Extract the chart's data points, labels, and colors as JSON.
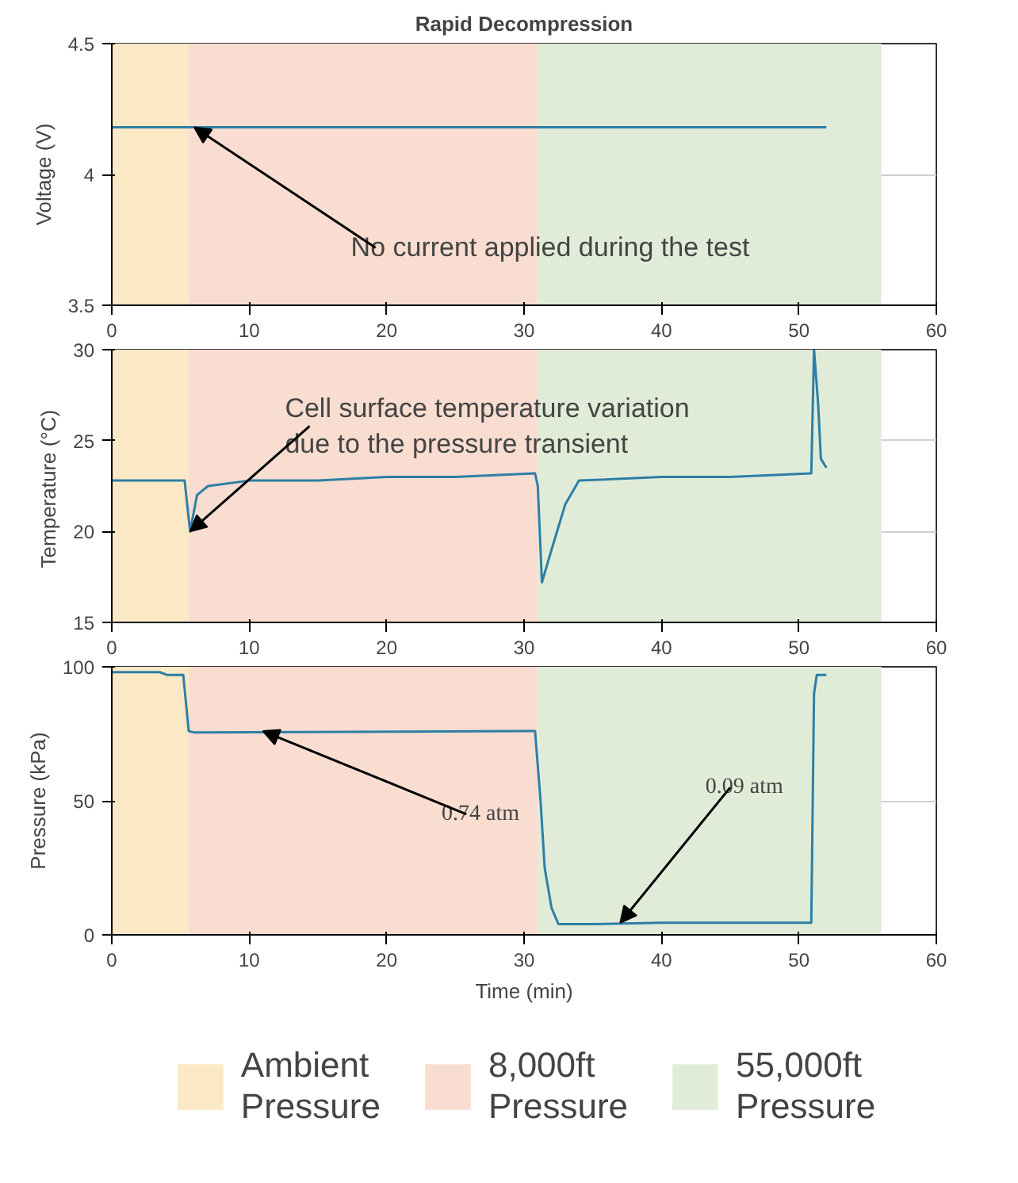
{
  "chart_data": [
    {
      "type": "line",
      "title": "Rapid Decompression",
      "ylabel": "Voltage (V)",
      "xlim": [
        0,
        60
      ],
      "xticks": [
        0,
        10,
        20,
        30,
        40,
        50,
        60
      ],
      "ylim": [
        3.5,
        4.5
      ],
      "yticks": [
        3.5,
        4,
        4.5
      ],
      "grid": true,
      "series": [
        {
          "color": "#2d7fa6",
          "x": [
            0,
            10,
            20,
            30,
            40,
            52
          ],
          "values": [
            4.18,
            4.18,
            4.18,
            4.18,
            4.18,
            4.18
          ]
        }
      ],
      "bands": [
        {
          "axis": "x",
          "from": 0,
          "to": 5.6,
          "color": "#fbe9c6"
        },
        {
          "axis": "x",
          "from": 5.6,
          "to": 31,
          "color": "#f8ddd0"
        },
        {
          "axis": "x",
          "from": 31,
          "to": 56,
          "color": "#e1ecd8"
        }
      ],
      "annotations": [
        {
          "text": "No current applied during the test",
          "x": 6,
          "y": 4.18
        }
      ]
    },
    {
      "type": "line",
      "ylabel": "Temperature  (°C)",
      "xlim": [
        0,
        60
      ],
      "xticks": [
        0,
        10,
        20,
        30,
        40,
        50,
        60
      ],
      "ylim": [
        15,
        30
      ],
      "yticks": [
        15,
        20,
        25,
        30
      ],
      "grid": true,
      "series": [
        {
          "color": "#2d7fa6",
          "x": [
            0,
            5.3,
            5.7,
            6.2,
            7,
            10,
            15,
            20,
            25,
            30.8,
            31.0,
            31.3,
            32,
            33,
            34,
            40,
            45,
            50.9,
            51.1,
            51.4,
            51.6,
            52
          ],
          "values": [
            22.8,
            22.8,
            20.0,
            22.0,
            22.5,
            22.8,
            22.8,
            23.0,
            23.0,
            23.2,
            22.5,
            17.2,
            19,
            21.5,
            22.8,
            23.0,
            23.0,
            23.2,
            30.0,
            27,
            24,
            23.5
          ]
        }
      ],
      "bands": [
        {
          "axis": "x",
          "from": 0,
          "to": 5.6,
          "color": "#fbe9c6"
        },
        {
          "axis": "x",
          "from": 5.6,
          "to": 31,
          "color": "#f8ddd0"
        },
        {
          "axis": "x",
          "from": 31,
          "to": 56,
          "color": "#e1ecd8"
        }
      ],
      "annotations": [
        {
          "text": "Cell surface temperature variation\ndue to the pressure transient",
          "x": 5.7,
          "y": 20.0
        }
      ]
    },
    {
      "type": "line",
      "ylabel": "Pressure (kPa)",
      "xlabel": "Time (min)",
      "xlim": [
        0,
        60
      ],
      "xticks": [
        0,
        10,
        20,
        30,
        40,
        50,
        60
      ],
      "ylim": [
        0,
        100
      ],
      "yticks": [
        0,
        50,
        100
      ],
      "grid": true,
      "legend": "bottom",
      "series": [
        {
          "color": "#2d7fa6",
          "x": [
            0,
            3.5,
            4,
            5.2,
            5.6,
            6,
            30,
            30.8,
            31.2,
            31.5,
            32,
            32.5,
            35,
            40,
            50.9,
            51.1,
            51.3,
            52
          ],
          "values": [
            98,
            98,
            97,
            97,
            76,
            75.5,
            76,
            76,
            50,
            25,
            10,
            4,
            4,
            4.5,
            4.5,
            90,
            97,
            97
          ]
        }
      ],
      "bands": [
        {
          "axis": "x",
          "from": 0,
          "to": 5.6,
          "color": "#fbe9c6",
          "label": "Ambient\nPressure"
        },
        {
          "axis": "x",
          "from": 5.6,
          "to": 31,
          "color": "#f8ddd0",
          "label": "8,000ft\nPressure"
        },
        {
          "axis": "x",
          "from": 31,
          "to": 56,
          "color": "#e1ecd8",
          "label": "55,000ft\nPressure"
        }
      ],
      "annotations": [
        {
          "text": "0.74 atm",
          "x": 11,
          "y": 76
        },
        {
          "text": "0.09 atm",
          "x": 37,
          "y": 4.5
        }
      ]
    }
  ]
}
